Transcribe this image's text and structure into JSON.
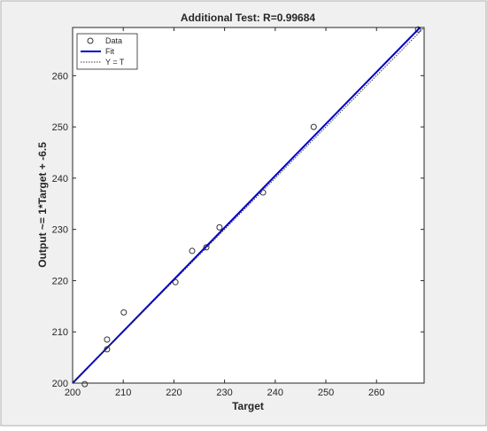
{
  "chart_data": {
    "type": "scatter",
    "title": "Additional Test: R=0.99684",
    "x_label": "Target",
    "y_label": "Output ~= 1*Target + -6.5",
    "xlim": [
      200,
      269.4
    ],
    "ylim": [
      200,
      269.4
    ],
    "xticks": [
      200,
      210,
      220,
      230,
      240,
      250,
      260
    ],
    "yticks": [
      200,
      210,
      220,
      230,
      240,
      250,
      260
    ],
    "legend": "top-left",
    "series": [
      {
        "name": "Data",
        "color": "#333333",
        "line_style": "none",
        "x": [
          268.2,
          247.6,
          237.6,
          229.0,
          226.4,
          223.6,
          220.3,
          210.1,
          206.8,
          206.8,
          202.4
        ],
        "values": [
          269.0,
          250.0,
          237.2,
          230.4,
          226.5,
          225.8,
          219.7,
          213.8,
          208.5,
          206.6,
          199.8
        ]
      },
      {
        "name": "Fit",
        "color": "#0000c8",
        "line_style": "solid",
        "x": [
          200,
          268.6
        ],
        "values": [
          200,
          269.4
        ]
      },
      {
        "name": "Y = T",
        "color": "#333333",
        "line_style": "dotted",
        "x": [
          200,
          269.4
        ],
        "values": [
          200,
          269.4
        ]
      }
    ]
  }
}
